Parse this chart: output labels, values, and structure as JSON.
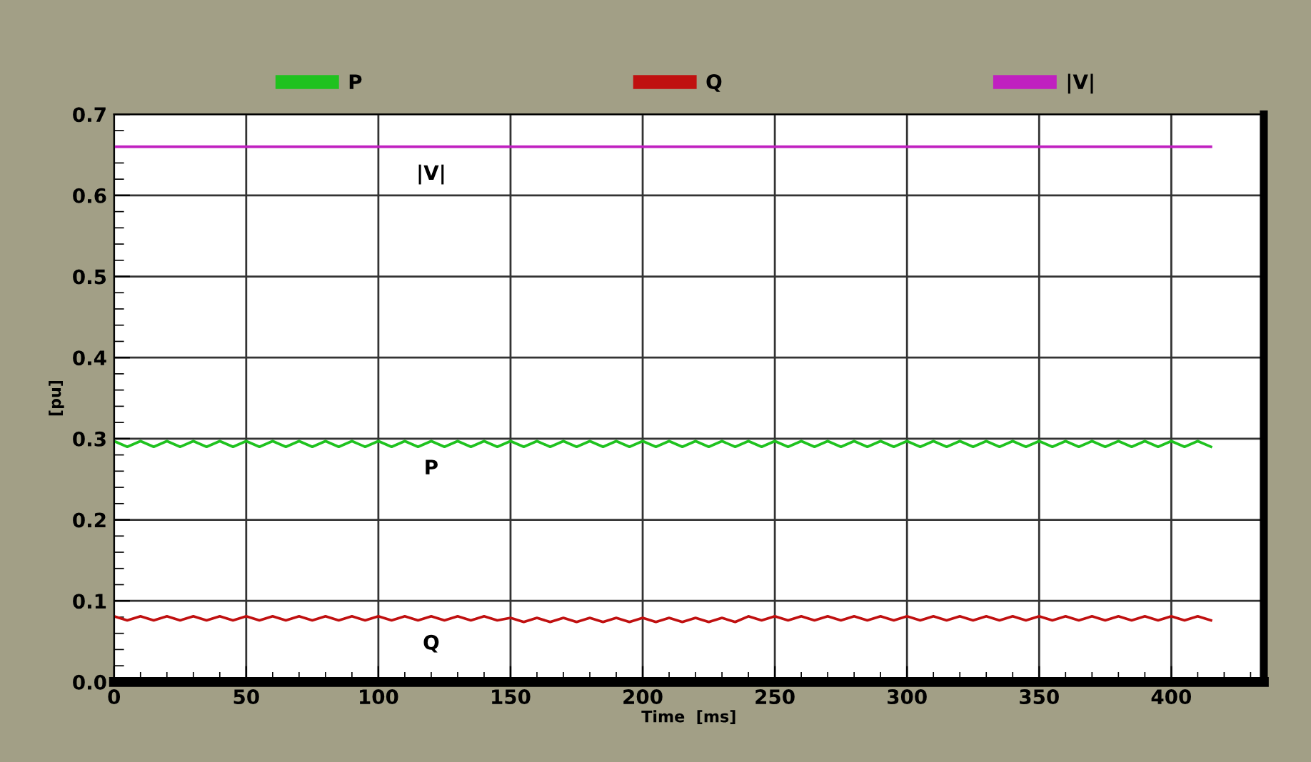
{
  "chart_data": {
    "type": "line",
    "xlabel": "Time  [ms]",
    "ylabel": "[pu]",
    "x": [
      0,
      5,
      10,
      15,
      20,
      25,
      30,
      35,
      40,
      45,
      50,
      55,
      60,
      65,
      70,
      75,
      80,
      85,
      90,
      95,
      100,
      105,
      110,
      115,
      120,
      125,
      130,
      135,
      140,
      145,
      150,
      155,
      160,
      165,
      170,
      175,
      180,
      185,
      190,
      195,
      200,
      205,
      210,
      215,
      220,
      225,
      230,
      235,
      240,
      245,
      250,
      255,
      260,
      265,
      270,
      275,
      280,
      285,
      290,
      295,
      300,
      305,
      310,
      315,
      320,
      325,
      330,
      335,
      340,
      345,
      350,
      355,
      360,
      365,
      370,
      375,
      380,
      385,
      390,
      395,
      400,
      405,
      410,
      415
    ],
    "series": [
      {
        "name": "P",
        "color": "#1fc21f",
        "values": [
          0.297,
          0.29,
          0.297,
          0.29,
          0.297,
          0.29,
          0.297,
          0.29,
          0.297,
          0.29,
          0.297,
          0.29,
          0.297,
          0.29,
          0.297,
          0.29,
          0.297,
          0.29,
          0.297,
          0.29,
          0.297,
          0.29,
          0.297,
          0.29,
          0.297,
          0.29,
          0.297,
          0.29,
          0.297,
          0.29,
          0.297,
          0.29,
          0.297,
          0.29,
          0.297,
          0.29,
          0.297,
          0.29,
          0.297,
          0.29,
          0.297,
          0.29,
          0.297,
          0.29,
          0.297,
          0.29,
          0.297,
          0.29,
          0.297,
          0.29,
          0.297,
          0.29,
          0.297,
          0.29,
          0.297,
          0.29,
          0.297,
          0.29,
          0.297,
          0.29,
          0.297,
          0.29,
          0.297,
          0.29,
          0.297,
          0.29,
          0.297,
          0.29,
          0.297,
          0.29,
          0.297,
          0.29,
          0.297,
          0.29,
          0.297,
          0.29,
          0.297,
          0.29,
          0.297,
          0.29,
          0.297,
          0.29,
          0.297,
          0.29
        ]
      },
      {
        "name": "Q",
        "color": "#c01010",
        "values": [
          0.081,
          0.076,
          0.081,
          0.076,
          0.081,
          0.076,
          0.081,
          0.076,
          0.081,
          0.076,
          0.081,
          0.076,
          0.081,
          0.076,
          0.081,
          0.076,
          0.081,
          0.076,
          0.081,
          0.076,
          0.081,
          0.076,
          0.081,
          0.076,
          0.081,
          0.076,
          0.081,
          0.076,
          0.081,
          0.076,
          0.079,
          0.074,
          0.079,
          0.074,
          0.079,
          0.074,
          0.079,
          0.074,
          0.079,
          0.074,
          0.079,
          0.074,
          0.079,
          0.074,
          0.079,
          0.074,
          0.079,
          0.074,
          0.081,
          0.076,
          0.081,
          0.076,
          0.081,
          0.076,
          0.081,
          0.076,
          0.081,
          0.076,
          0.081,
          0.076,
          0.081,
          0.076,
          0.081,
          0.076,
          0.081,
          0.076,
          0.081,
          0.076,
          0.081,
          0.076,
          0.081,
          0.076,
          0.081,
          0.076,
          0.081,
          0.076,
          0.081,
          0.076,
          0.081,
          0.076,
          0.081,
          0.076,
          0.081,
          0.076
        ]
      },
      {
        "name": "|V|",
        "color": "#c020c0",
        "values": [
          0.66,
          0.66,
          0.66,
          0.66,
          0.66,
          0.66,
          0.66,
          0.66,
          0.66,
          0.66,
          0.66,
          0.66,
          0.66,
          0.66,
          0.66,
          0.66,
          0.66,
          0.66,
          0.66,
          0.66,
          0.66,
          0.66,
          0.66,
          0.66,
          0.66,
          0.66,
          0.66,
          0.66,
          0.66,
          0.66,
          0.66,
          0.66,
          0.66,
          0.66,
          0.66,
          0.66,
          0.66,
          0.66,
          0.66,
          0.66,
          0.66,
          0.66,
          0.66,
          0.66,
          0.66,
          0.66,
          0.66,
          0.66,
          0.66,
          0.66,
          0.66,
          0.66,
          0.66,
          0.66,
          0.66,
          0.66,
          0.66,
          0.66,
          0.66,
          0.66,
          0.66,
          0.66,
          0.66,
          0.66,
          0.66,
          0.66,
          0.66,
          0.66,
          0.66,
          0.66,
          0.66,
          0.66,
          0.66,
          0.66,
          0.66,
          0.66,
          0.66,
          0.66,
          0.66,
          0.66,
          0.66,
          0.66,
          0.66,
          0.66
        ]
      }
    ],
    "xlim": [
      0,
      435
    ],
    "ylim": [
      0,
      0.7
    ],
    "xticks": [
      0,
      50,
      100,
      150,
      200,
      250,
      300,
      350,
      400
    ],
    "yticks": [
      {
        "value": 0,
        "label": "0.0"
      },
      {
        "value": 0.1,
        "label": "0.1"
      },
      {
        "value": 0.2,
        "label": "0.2"
      },
      {
        "value": 0.3,
        "label": "0.3"
      },
      {
        "value": 0.4,
        "label": "0.4"
      },
      {
        "value": 0.5,
        "label": "0.5"
      },
      {
        "value": 0.6,
        "label": "0.6"
      },
      {
        "value": 0.7,
        "label": "0.7"
      }
    ],
    "grid": true,
    "legend": "top",
    "marker": "none",
    "line_style": "solid"
  }
}
